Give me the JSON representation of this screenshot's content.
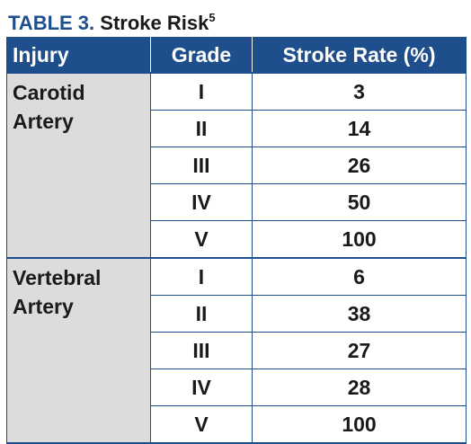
{
  "caption": {
    "label": "TABLE 3.",
    "title": "Stroke Risk",
    "superscript": "5"
  },
  "table": {
    "headers": [
      "Injury",
      "Grade",
      "Stroke Rate (%)"
    ],
    "groups": [
      {
        "injury_line1": "Carotid",
        "injury_line2": "Artery",
        "rows": [
          {
            "grade": "I",
            "rate": "3"
          },
          {
            "grade": "II",
            "rate": "14"
          },
          {
            "grade": "III",
            "rate": "26"
          },
          {
            "grade": "IV",
            "rate": "50"
          },
          {
            "grade": "V",
            "rate": "100"
          }
        ]
      },
      {
        "injury_line1": "Vertebral",
        "injury_line2": "Artery",
        "rows": [
          {
            "grade": "I",
            "rate": "6"
          },
          {
            "grade": "II",
            "rate": "38"
          },
          {
            "grade": "III",
            "rate": "27"
          },
          {
            "grade": "IV",
            "rate": "28"
          },
          {
            "grade": "V",
            "rate": "100"
          }
        ]
      }
    ]
  },
  "colors": {
    "header_bg": "#1e4f8c",
    "label": "#1e4f8c",
    "injury_bg": "#dcdcdc"
  }
}
